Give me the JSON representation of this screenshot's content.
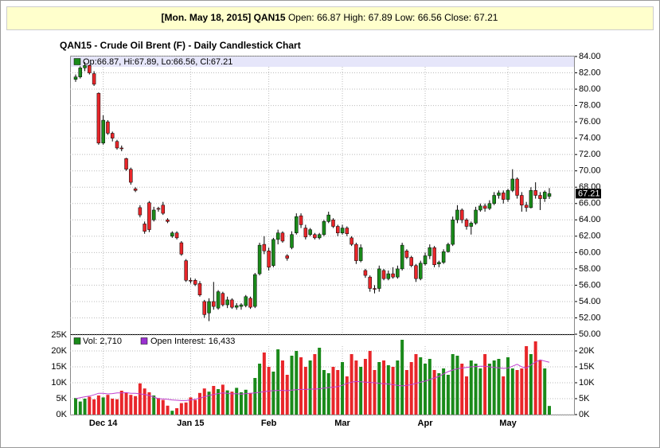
{
  "header": {
    "symbol_date": "[Mon. May 18, 2015] QAN15",
    "quote": "Open: 66.87 High: 67.89 Low: 66.56 Close: 67.21"
  },
  "chart_data": [
    {
      "type": "candlestick",
      "title": "QAN15 - Crude Oil Brent (F) - Daily Candlestick Chart",
      "ohlc_legend": "Op:66.87, Hi:67.89, Lo:66.56, Cl:67.21",
      "up_color": "#1a8a1a",
      "down_color": "#e8262a",
      "grid": true,
      "categories": [
        null,
        null,
        null,
        null,
        null,
        null,
        "Dec 14",
        null,
        null,
        null,
        null,
        null,
        null,
        null,
        null,
        null,
        null,
        null,
        null,
        null,
        null,
        null,
        null,
        null,
        null,
        "Jan 15",
        null,
        null,
        null,
        null,
        null,
        null,
        null,
        null,
        null,
        null,
        null,
        null,
        null,
        null,
        null,
        null,
        "Feb",
        null,
        null,
        null,
        null,
        null,
        null,
        null,
        null,
        null,
        null,
        null,
        null,
        null,
        null,
        null,
        "Mar",
        null,
        null,
        null,
        null,
        null,
        null,
        null,
        null,
        null,
        null,
        null,
        null,
        null,
        null,
        null,
        null,
        null,
        "Apr",
        null,
        null,
        null,
        null,
        null,
        null,
        null,
        null,
        null,
        null,
        null,
        null,
        null,
        null,
        null,
        null,
        null,
        "May",
        null,
        null,
        null,
        null,
        null,
        null,
        null,
        null,
        null
      ],
      "open": [
        81.2,
        81.5,
        82.6,
        82.9,
        81.9,
        79.5,
        73.4,
        76.0,
        74.6,
        73.6,
        72.8,
        71.5,
        70.2,
        67.8,
        65.5,
        63.5,
        66.1,
        64.0,
        65.4,
        65.8,
        64.0,
        62.0,
        62.4,
        61.2,
        59.0,
        56.6,
        56.6,
        56.2,
        54.0,
        52.6,
        54.0,
        53.2,
        55.0,
        53.6,
        54.2,
        53.3,
        53.4,
        53.5,
        54.4,
        53.4,
        57.4,
        61.0,
        60.2,
        58.4,
        61.6,
        62.4,
        59.6,
        60.6,
        62.4,
        64.5,
        63.0,
        62.2,
        62.2,
        61.8,
        62.2,
        63.8,
        64.0,
        63.2,
        62.4,
        63.0,
        61.8,
        61.0,
        59.0,
        57.8,
        57.0,
        55.6,
        55.6,
        57.8,
        56.8,
        57.4,
        57.0,
        58.0,
        60.2,
        59.4,
        58.4,
        56.8,
        58.6,
        59.6,
        60.6,
        58.6,
        58.8,
        60.1,
        61.0,
        64.0,
        65.2,
        64.0,
        63.2,
        63.6,
        65.2,
        65.7,
        65.4,
        66.0,
        67.0,
        67.3,
        66.5,
        67.6,
        69.0,
        67.0,
        65.8,
        65.5,
        67.6,
        67.0,
        66.6,
        66.87
      ],
      "high": [
        81.8,
        82.8,
        83.3,
        83.0,
        82.2,
        79.6,
        76.8,
        76.2,
        74.8,
        73.8,
        73.1,
        71.6,
        70.4,
        68.0,
        65.8,
        63.8,
        66.3,
        65.6,
        65.6,
        66.2,
        64.2,
        62.6,
        62.6,
        61.4,
        59.2,
        56.9,
        56.8,
        56.5,
        54.2,
        54.4,
        56.4,
        55.4,
        55.2,
        54.6,
        54.4,
        53.8,
        53.8,
        54.8,
        54.6,
        57.5,
        61.2,
        62.0,
        60.6,
        61.8,
        62.8,
        62.6,
        59.8,
        62.6,
        64.8,
        64.8,
        63.4,
        63.0,
        62.4,
        62.4,
        64.0,
        65.0,
        64.2,
        63.4,
        63.4,
        63.2,
        62.0,
        61.2,
        61.0,
        58.0,
        57.2,
        56.0,
        58.4,
        58.0,
        57.8,
        58.2,
        58.4,
        61.2,
        60.4,
        59.6,
        58.6,
        59.0,
        60.0,
        61.0,
        60.8,
        59.0,
        60.4,
        61.2,
        64.4,
        65.8,
        65.4,
        64.2,
        63.8,
        65.6,
        66.0,
        66.0,
        66.4,
        67.4,
        67.6,
        67.6,
        67.8,
        70.2,
        69.2,
        67.4,
        66.2,
        68.0,
        68.6,
        67.4,
        67.6,
        67.89
      ],
      "low": [
        80.9,
        81.3,
        82.2,
        81.8,
        80.4,
        73.2,
        73.2,
        74.4,
        73.6,
        72.6,
        72.4,
        70.0,
        68.3,
        67.4,
        64.3,
        62.3,
        62.5,
        63.8,
        65.0,
        64.6,
        63.6,
        61.8,
        61.6,
        59.6,
        56.4,
        56.2,
        55.9,
        54.6,
        52.0,
        51.6,
        53.0,
        53.0,
        53.4,
        53.2,
        53.1,
        53.0,
        53.0,
        53.3,
        53.1,
        53.2,
        57.2,
        59.8,
        57.8,
        58.2,
        61.0,
        61.2,
        59.0,
        60.4,
        62.2,
        63.0,
        61.6,
        62.0,
        61.6,
        61.6,
        62.0,
        63.6,
        63.0,
        62.0,
        62.2,
        62.0,
        60.8,
        58.6,
        58.8,
        56.9,
        55.2,
        55.0,
        55.2,
        56.6,
        56.6,
        56.8,
        56.8,
        57.8,
        59.2,
        58.2,
        56.4,
        56.6,
        58.4,
        59.2,
        58.2,
        58.2,
        58.6,
        60.0,
        60.8,
        63.6,
        63.6,
        62.8,
        62.2,
        63.4,
        65.0,
        65.0,
        65.2,
        65.8,
        66.6,
        66.0,
        66.2,
        67.4,
        66.6,
        65.0,
        65.0,
        65.4,
        66.6,
        65.2,
        66.2,
        66.56
      ],
      "close": [
        81.5,
        82.6,
        82.9,
        82.0,
        80.6,
        73.4,
        76.2,
        74.6,
        74.0,
        72.8,
        72.7,
        70.2,
        68.6,
        67.6,
        64.6,
        62.6,
        62.8,
        65.2,
        65.3,
        64.8,
        63.8,
        62.4,
        61.8,
        59.8,
        56.6,
        56.5,
        56.1,
        54.8,
        52.4,
        54.0,
        53.4,
        55.2,
        53.6,
        54.2,
        53.3,
        53.5,
        53.6,
        54.6,
        53.3,
        57.3,
        60.9,
        60.2,
        58.2,
        61.6,
        62.4,
        61.4,
        59.3,
        62.2,
        64.4,
        63.4,
        61.9,
        62.8,
        61.8,
        62.2,
        63.8,
        64.6,
        63.2,
        62.4,
        63.0,
        62.3,
        61.0,
        59.0,
        60.6,
        57.2,
        55.6,
        55.5,
        58.0,
        56.8,
        57.4,
        57.0,
        58.0,
        60.9,
        59.4,
        58.4,
        56.8,
        58.7,
        59.6,
        60.6,
        58.5,
        58.8,
        60.1,
        61.0,
        64.0,
        65.2,
        64.0,
        63.2,
        63.6,
        65.2,
        65.7,
        65.4,
        66.0,
        67.0,
        67.3,
        66.5,
        67.6,
        69.0,
        67.0,
        65.8,
        65.5,
        67.6,
        67.0,
        66.6,
        67.4,
        67.21
      ],
      "ylim": [
        50,
        84
      ],
      "yticks": [
        {
          "value": 50,
          "label": "50.00"
        },
        {
          "value": 52,
          "label": "52.00"
        },
        {
          "value": 54,
          "label": "54.00"
        },
        {
          "value": 56,
          "label": "56.00"
        },
        {
          "value": 58,
          "label": "58.00"
        },
        {
          "value": 60,
          "label": "60.00"
        },
        {
          "value": 62,
          "label": "62.00"
        },
        {
          "value": 64,
          "label": "64.00"
        },
        {
          "value": 66,
          "label": "66.00"
        },
        {
          "value": 68,
          "label": "68.00"
        },
        {
          "value": 70,
          "label": "70.00"
        },
        {
          "value": 72,
          "label": "72.00"
        },
        {
          "value": 74,
          "label": "74.00"
        },
        {
          "value": 76,
          "label": "76.00"
        },
        {
          "value": 78,
          "label": "78.00"
        },
        {
          "value": 80,
          "label": "80.00"
        },
        {
          "value": 82,
          "label": "82.00"
        },
        {
          "value": 84,
          "label": "84.00"
        }
      ]
    },
    {
      "type": "bar",
      "volume_legend": "Vol: 2,710",
      "oi_legend": "Open Interest: 16,433",
      "volume_color": "#1a8a1a",
      "oi_color": "#c040d0",
      "grid": true,
      "volume": [
        5200,
        4100,
        5000,
        5600,
        4800,
        6000,
        5400,
        6200,
        5000,
        4800,
        7500,
        6800,
        6200,
        5800,
        9800,
        8200,
        7000,
        6000,
        5200,
        4600,
        2800,
        1200,
        2000,
        3600,
        3800,
        5400,
        4600,
        6800,
        8200,
        7200,
        9000,
        8000,
        9400,
        7600,
        7200,
        8400,
        7000,
        7800,
        6800,
        11500,
        16000,
        19500,
        15000,
        13500,
        20500,
        17000,
        12500,
        18500,
        20000,
        18000,
        15000,
        17000,
        19000,
        21000,
        14000,
        13000,
        15000,
        14000,
        16500,
        12000,
        19000,
        17000,
        15000,
        17500,
        20000,
        14000,
        16500,
        17000,
        15500,
        15000,
        17000,
        23500,
        14000,
        16500,
        19000,
        18000,
        16000,
        17500,
        14000,
        13000,
        14500,
        12500,
        19000,
        18500,
        16000,
        12000,
        17000,
        16000,
        14500,
        19000,
        16000,
        17000,
        17500,
        12000,
        18000,
        14500,
        14000,
        14500,
        21500,
        19000,
        23000,
        17000,
        14500,
        2710
      ],
      "open_interest": [
        5000,
        5300,
        5600,
        5800,
        6200,
        6700,
        6700,
        6500,
        6600,
        6800,
        6800,
        6900,
        6700,
        6700,
        6500,
        6300,
        6000,
        5500,
        5000,
        4900,
        4800,
        4600,
        4500,
        4400,
        4400,
        4600,
        4800,
        5200,
        5600,
        6000,
        6300,
        6600,
        6800,
        6700,
        6500,
        6600,
        6400,
        6600,
        6700,
        6800,
        7000,
        7200,
        7400,
        7500,
        7600,
        7600,
        7500,
        7700,
        7800,
        7900,
        7900,
        8000,
        8000,
        8100,
        8300,
        8500,
        8600,
        8800,
        9200,
        9800,
        10200,
        10400,
        10300,
        10200,
        10100,
        10000,
        9800,
        9700,
        9600,
        9400,
        9200,
        9000,
        9200,
        9400,
        9800,
        10200,
        10500,
        11000,
        11500,
        12000,
        12800,
        13500,
        14000,
        14400,
        14600,
        14800,
        15000,
        15100,
        15200,
        15200,
        15000,
        14800,
        14700,
        14500,
        14600,
        15200,
        15800,
        15000,
        14600,
        15600,
        16500,
        17200,
        16800,
        16433
      ],
      "ylim": [
        0,
        25000
      ],
      "yticks": [
        {
          "value": 0,
          "label": "0K"
        },
        {
          "value": 5000,
          "label": "5K"
        },
        {
          "value": 10000,
          "label": "10K"
        },
        {
          "value": 15000,
          "label": "15K"
        },
        {
          "value": 20000,
          "label": "20K"
        },
        {
          "value": 25000,
          "label": "25K"
        }
      ],
      "y2lim": [
        0,
        25000
      ],
      "y2ticks": [
        {
          "value": 0,
          "label": "0K"
        },
        {
          "value": 5000,
          "label": "5K"
        },
        {
          "value": 10000,
          "label": "10K"
        },
        {
          "value": 15000,
          "label": "15K"
        },
        {
          "value": 20000,
          "label": "20K"
        }
      ]
    }
  ]
}
